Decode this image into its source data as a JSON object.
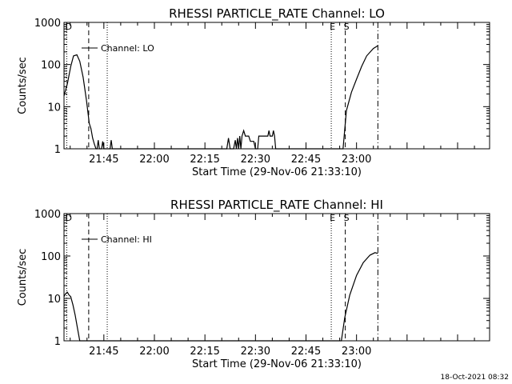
{
  "footer_stamp": "18-Oct-2021 08:32",
  "chart_data": [
    {
      "type": "line",
      "title": "RHESSI PARTICLE_RATE Channel: LO",
      "xlabel": "Start Time (29-Nov-06 21:33:10)",
      "ylabel": "Counts/sec",
      "yscale": "log",
      "xlim": [
        "21:33:10",
        "23:39:30"
      ],
      "ylim": [
        1,
        1000
      ],
      "x_tick_labels": [
        "21:45",
        "22:00",
        "22:15",
        "22:30",
        "22:45",
        "23:00"
      ],
      "y_tick_labels": [
        "1",
        "10",
        "100",
        "1000"
      ],
      "legend": "Channel: LO",
      "legend_position": "top-left",
      "grid": false,
      "markers": [
        {
          "label": "D",
          "time": "21:34:00",
          "style": "dotted"
        },
        {
          "label": "",
          "time": "21:40:30",
          "style": "dashed"
        },
        {
          "label": "",
          "time": "21:46:00",
          "style": "dotted"
        },
        {
          "label": "E",
          "time": "22:52:30",
          "style": "dotted"
        },
        {
          "label": "S",
          "time": "22:56:40",
          "style": "dashed"
        },
        {
          "label": "",
          "time": "23:06:20",
          "style": "dashdot"
        }
      ],
      "series": [
        {
          "name": "Channel: LO",
          "points": [
            [
              "21:33:10",
              18
            ],
            [
              "21:34:10",
              35
            ],
            [
              "21:35:10",
              90
            ],
            [
              "21:36:00",
              160
            ],
            [
              "21:37:00",
              170
            ],
            [
              "21:37:50",
              120
            ],
            [
              "21:38:50",
              50
            ],
            [
              "21:39:50",
              14
            ],
            [
              "21:40:40",
              4
            ],
            [
              "21:41:10",
              3
            ],
            [
              "21:41:40",
              1.8
            ],
            [
              "21:42:10",
              1.3
            ],
            [
              "21:42:40",
              1
            ],
            [
              "21:43:00",
              1
            ],
            [
              "21:43:20",
              1.6
            ],
            [
              "21:43:40",
              1
            ],
            [
              "21:44:20",
              1
            ],
            [
              "21:44:40",
              1.5
            ],
            [
              "21:45:00",
              1
            ],
            [
              "21:46:50",
              1
            ],
            [
              "21:47:10",
              1.6
            ],
            [
              "21:47:30",
              1
            ],
            [
              "22:21:30",
              1
            ],
            [
              "22:22:00",
              1.8
            ],
            [
              "22:22:30",
              1
            ],
            [
              "22:23:30",
              1
            ],
            [
              "22:24:00",
              1.6
            ],
            [
              "22:24:20",
              1
            ],
            [
              "22:24:40",
              1.8
            ],
            [
              "22:25:00",
              1
            ],
            [
              "22:25:20",
              2
            ],
            [
              "22:25:40",
              1
            ],
            [
              "22:26:00",
              2
            ],
            [
              "22:26:30",
              2.7
            ],
            [
              "22:27:00",
              2
            ],
            [
              "22:28:00",
              2
            ],
            [
              "22:28:30",
              1.5
            ],
            [
              "22:29:30",
              1.5
            ],
            [
              "22:30:00",
              1
            ],
            [
              "22:30:40",
              1
            ],
            [
              "22:31:00",
              2
            ],
            [
              "22:33:40",
              2
            ],
            [
              "22:34:00",
              2.7
            ],
            [
              "22:34:20",
              2
            ],
            [
              "22:35:00",
              2
            ],
            [
              "22:35:20",
              2.7
            ],
            [
              "22:35:40",
              2
            ],
            [
              "22:36:00",
              1
            ],
            [
              "22:56:00",
              1
            ],
            [
              "22:57:00",
              8
            ],
            [
              "22:58:30",
              22
            ],
            [
              "23:00:00",
              45
            ],
            [
              "23:01:30",
              90
            ],
            [
              "23:03:00",
              160
            ],
            [
              "23:05:00",
              240
            ],
            [
              "23:06:20",
              280
            ]
          ]
        }
      ]
    },
    {
      "type": "line",
      "title": "RHESSI PARTICLE_RATE Channel: HI",
      "xlabel": "Start Time (29-Nov-06 21:33:10)",
      "ylabel": "Counts/sec",
      "yscale": "log",
      "xlim": [
        "21:33:10",
        "23:39:30"
      ],
      "ylim": [
        1,
        1000
      ],
      "x_tick_labels": [
        "21:45",
        "22:00",
        "22:15",
        "22:30",
        "22:45",
        "23:00"
      ],
      "y_tick_labels": [
        "1",
        "10",
        "100",
        "1000"
      ],
      "legend": "Channel: HI",
      "legend_position": "top-left",
      "grid": false,
      "markers": [
        {
          "label": "D",
          "time": "21:34:00",
          "style": "dotted"
        },
        {
          "label": "",
          "time": "21:40:30",
          "style": "dashed"
        },
        {
          "label": "",
          "time": "21:46:00",
          "style": "dotted"
        },
        {
          "label": "E",
          "time": "22:52:30",
          "style": "dotted"
        },
        {
          "label": "S",
          "time": "22:56:40",
          "style": "dashed"
        },
        {
          "label": "",
          "time": "23:06:20",
          "style": "dashdot"
        }
      ],
      "series": [
        {
          "name": "Channel: HI",
          "points": [
            [
              "21:33:10",
              11
            ],
            [
              "21:33:40",
              13
            ],
            [
              "21:34:10",
              14
            ],
            [
              "21:34:40",
              12
            ],
            [
              "21:35:10",
              11
            ],
            [
              "21:35:50",
              7
            ],
            [
              "21:36:30",
              4
            ],
            [
              "21:37:10",
              2
            ],
            [
              "21:37:50",
              1
            ],
            [
              "22:55:30",
              1
            ],
            [
              "22:56:30",
              3.5
            ],
            [
              "22:58:00",
              12
            ],
            [
              "23:00:00",
              35
            ],
            [
              "23:02:00",
              70
            ],
            [
              "23:04:00",
              105
            ],
            [
              "23:05:30",
              120
            ],
            [
              "23:06:20",
              115
            ]
          ]
        }
      ]
    }
  ]
}
